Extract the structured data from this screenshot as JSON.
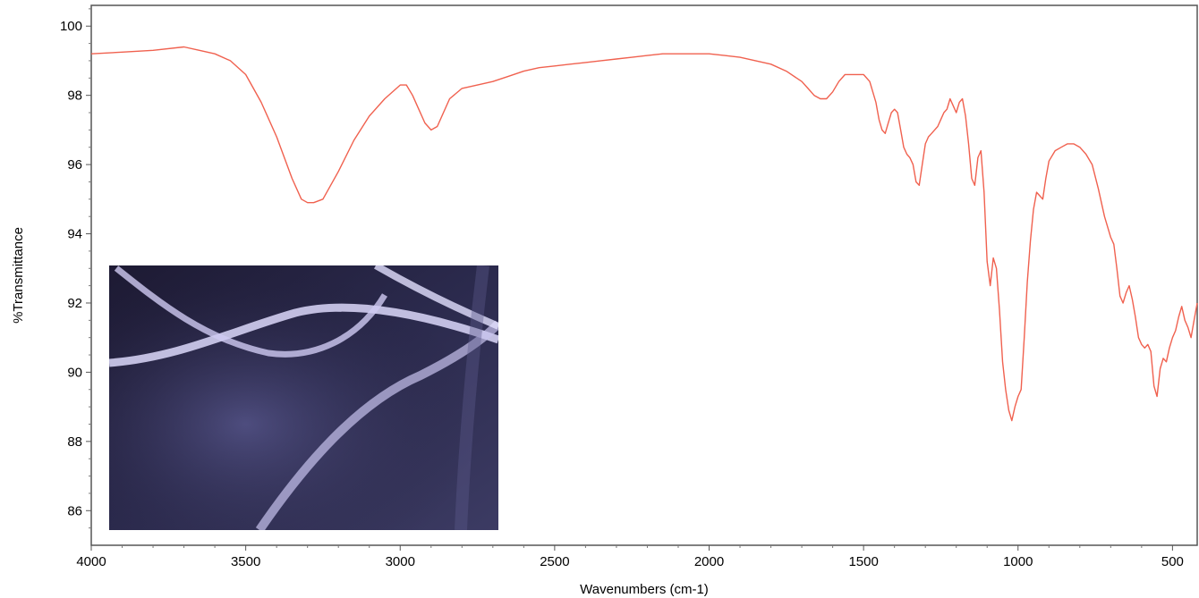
{
  "chart_data": {
    "type": "line",
    "title": "",
    "xlabel": "Wavenumbers (cm-1)",
    "ylabel": "%Transmittance",
    "xlim": [
      4000,
      420
    ],
    "ylim": [
      85,
      100.6
    ],
    "x_reversed": true,
    "grid": false,
    "legend": "none",
    "x_ticks": [
      4000,
      3500,
      3000,
      2500,
      2000,
      1500,
      1000,
      500
    ],
    "y_ticks": [
      86,
      88,
      90,
      92,
      94,
      96,
      98,
      100
    ],
    "x_tick_labels": [
      "4000",
      "3500",
      "3000",
      "2500",
      "2000",
      "1500",
      "1000",
      "500"
    ],
    "y_tick_labels": [
      "86",
      "88",
      "90",
      "92",
      "94",
      "96",
      "98",
      "100"
    ],
    "line_color": "#f0614f",
    "inset": {
      "description_shown": "fluorescence micrograph of fibers",
      "background_color": "#1e1b34",
      "fiber_color": "#d9d4f5"
    },
    "series": [
      {
        "x": [
          4000,
          3900,
          3800,
          3700,
          3650,
          3600,
          3550,
          3500,
          3450,
          3400,
          3350,
          3320,
          3300,
          3280,
          3250,
          3200,
          3150,
          3100,
          3050,
          3000,
          2980,
          2960,
          2940,
          2920,
          2900,
          2880,
          2860,
          2840,
          2800,
          2750,
          2700,
          2650,
          2600,
          2550,
          2500,
          2450,
          2400,
          2350,
          2300,
          2250,
          2200,
          2150,
          2100,
          2050,
          2000,
          1950,
          1900,
          1850,
          1800,
          1750,
          1700,
          1680,
          1660,
          1640,
          1620,
          1600,
          1580,
          1560,
          1540,
          1520,
          1500,
          1480,
          1460,
          1450,
          1440,
          1430,
          1420,
          1410,
          1400,
          1390,
          1380,
          1370,
          1360,
          1350,
          1340,
          1330,
          1320,
          1310,
          1300,
          1290,
          1280,
          1270,
          1260,
          1250,
          1240,
          1230,
          1220,
          1210,
          1200,
          1190,
          1180,
          1170,
          1160,
          1150,
          1140,
          1130,
          1120,
          1110,
          1100,
          1090,
          1080,
          1070,
          1060,
          1050,
          1040,
          1030,
          1020,
          1010,
          1000,
          990,
          980,
          970,
          960,
          950,
          940,
          930,
          920,
          910,
          900,
          880,
          860,
          840,
          820,
          800,
          780,
          760,
          740,
          720,
          700,
          690,
          680,
          670,
          660,
          650,
          640,
          630,
          620,
          610,
          600,
          590,
          580,
          570,
          560,
          550,
          540,
          530,
          520,
          510,
          500,
          490,
          480,
          470,
          460,
          450,
          440,
          430,
          420
        ],
        "y": [
          99.2,
          99.25,
          99.3,
          99.4,
          99.3,
          99.2,
          99.0,
          98.6,
          97.8,
          96.8,
          95.6,
          95.0,
          94.9,
          94.9,
          95.0,
          95.8,
          96.7,
          97.4,
          97.9,
          98.3,
          98.3,
          98.0,
          97.6,
          97.2,
          97.0,
          97.1,
          97.5,
          97.9,
          98.2,
          98.3,
          98.4,
          98.55,
          98.7,
          98.8,
          98.85,
          98.9,
          98.95,
          99.0,
          99.05,
          99.1,
          99.15,
          99.2,
          99.2,
          99.2,
          99.2,
          99.15,
          99.1,
          99.0,
          98.9,
          98.7,
          98.4,
          98.2,
          98.0,
          97.9,
          97.9,
          98.1,
          98.4,
          98.6,
          98.6,
          98.6,
          98.6,
          98.4,
          97.8,
          97.3,
          97.0,
          96.9,
          97.2,
          97.5,
          97.6,
          97.5,
          97.0,
          96.5,
          96.3,
          96.2,
          96.0,
          95.5,
          95.4,
          96.0,
          96.6,
          96.8,
          96.9,
          97.0,
          97.1,
          97.3,
          97.5,
          97.6,
          97.9,
          97.7,
          97.5,
          97.8,
          97.9,
          97.4,
          96.6,
          95.6,
          95.4,
          96.2,
          96.4,
          95.2,
          93.2,
          92.5,
          93.3,
          93.0,
          91.8,
          90.3,
          89.5,
          88.9,
          88.6,
          89.0,
          89.3,
          89.5,
          91.0,
          92.6,
          93.8,
          94.7,
          95.2,
          95.1,
          95.0,
          95.6,
          96.1,
          96.4,
          96.5,
          96.6,
          96.6,
          96.5,
          96.3,
          96.0,
          95.3,
          94.5,
          93.9,
          93.7,
          93.0,
          92.2,
          92.0,
          92.3,
          92.5,
          92.1,
          91.6,
          91.0,
          90.8,
          90.7,
          90.8,
          90.6,
          89.6,
          89.3,
          90.1,
          90.4,
          90.3,
          90.7,
          91.0,
          91.2,
          91.6,
          91.9,
          91.5,
          91.3,
          91.0,
          91.5,
          92.0
        ]
      }
    ]
  }
}
